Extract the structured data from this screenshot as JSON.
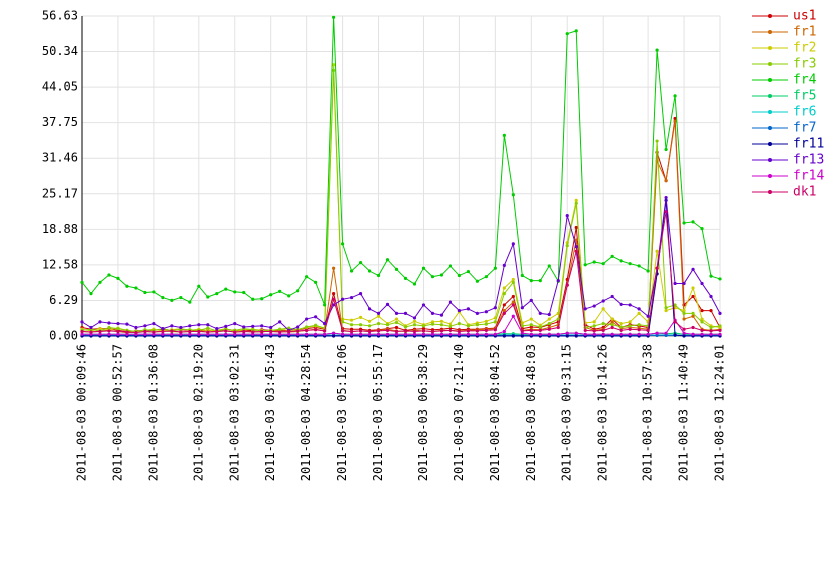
{
  "chart_data": {
    "type": "line",
    "categories": [
      "2011-08-03 00:09:46",
      null,
      null,
      null,
      "2011-08-03 00:52:57",
      null,
      null,
      null,
      "2011-08-03 01:36:08",
      null,
      null,
      null,
      null,
      "2011-08-03 02:19:20",
      null,
      null,
      null,
      "2011-08-03 03:02:31",
      null,
      null,
      null,
      "2011-08-03 03:45:43",
      null,
      null,
      null,
      "2011-08-03 04:28:54",
      null,
      null,
      null,
      "2011-08-03 05:12:06",
      null,
      null,
      null,
      "2011-08-03 05:55:17",
      null,
      null,
      null,
      null,
      "2011-08-03 06:38:29",
      null,
      null,
      null,
      "2011-08-03 07:21:40",
      null,
      null,
      null,
      "2011-08-03 08:04:52",
      null,
      null,
      null,
      "2011-08-03 08:48:03",
      null,
      null,
      null,
      "2011-08-03 09:31:15",
      null,
      null,
      null,
      "2011-08-03 10:14:26",
      null,
      null,
      null,
      null,
      "2011-08-03 10:57:38",
      null,
      null,
      null,
      "2011-08-03 11:40:49",
      null,
      null,
      null,
      "2011-08-03 12:24:01"
    ],
    "ylim": [
      0,
      56.63
    ],
    "yticks": [
      {
        "value": 0,
        "label": "0.00"
      },
      6.29,
      12.58,
      18.88,
      25.17,
      31.46,
      37.75,
      44.05,
      50.34,
      56.63
    ],
    "grid": true,
    "legend": "right",
    "series": [
      {
        "name": "us1",
        "color": "#cc0000",
        "values": [
          1.5,
          1.2,
          1.3,
          1.3,
          1,
          0.8,
          0.9,
          1,
          1,
          1.2,
          1,
          1.1,
          1,
          1,
          1,
          0.8,
          1.2,
          1,
          0.9,
          1,
          1.1,
          1,
          0.9,
          1,
          1.1,
          1.3,
          1.5,
          1.2,
          7.5,
          1.3,
          1.2,
          1.2,
          1,
          1.1,
          1.3,
          1.5,
          1,
          1.2,
          1.3,
          1.1,
          1.2,
          1.4,
          1.1,
          1.2,
          1.2,
          1.3,
          1.4,
          5.5,
          7,
          1.3,
          1.6,
          1.5,
          2,
          2.5,
          10,
          19.2,
          2,
          1.2,
          1.5,
          3,
          1.5,
          2,
          1.8,
          1.5,
          32.5,
          27.5,
          38.5,
          5.5,
          7,
          4.5,
          4.5,
          1.5
        ]
      },
      {
        "name": "fr1",
        "color": "#cc6600",
        "values": [
          0.8,
          0.7,
          0.9,
          1,
          0.8,
          0.6,
          0.7,
          0.8,
          0.7,
          0.9,
          0.8,
          0.7,
          0.8,
          0.9,
          0.7,
          0.8,
          0.9,
          0.7,
          0.8,
          0.8,
          0.7,
          0.9,
          0.8,
          0.7,
          0.8,
          1,
          1.2,
          0.9,
          12,
          1,
          0.8,
          0.9,
          0.8,
          1,
          1.2,
          0.9,
          0.8,
          1,
          0.9,
          0.8,
          1,
          1,
          0.9,
          1,
          1.1,
          1.2,
          1.3,
          4.5,
          6,
          1,
          1.2,
          1.1,
          1.5,
          2,
          9,
          17,
          1.5,
          1,
          1.2,
          2.5,
          1.3,
          1.5,
          1.4,
          1.2,
          31,
          27.5,
          38,
          3,
          3.5,
          1.2,
          1,
          1.2
        ]
      },
      {
        "name": "fr2",
        "color": "#cccc00",
        "values": [
          1.2,
          0.9,
          1.3,
          1.1,
          1.4,
          1,
          0.8,
          1,
          1.2,
          0.9,
          1.1,
          1.3,
          1,
          1.2,
          0.9,
          1,
          1.3,
          0.8,
          1.1,
          1.2,
          1,
          0.9,
          1.2,
          1,
          1.1,
          1.5,
          1.8,
          1.3,
          48,
          3,
          2.8,
          3.3,
          2.6,
          3.5,
          2.2,
          3,
          1.8,
          2.6,
          2,
          2.5,
          2.6,
          2.1,
          4.3,
          2,
          2.3,
          2.6,
          3.2,
          8.5,
          10,
          2.3,
          3,
          1.9,
          3,
          4,
          16.5,
          24,
          2.3,
          2.5,
          4.8,
          3,
          2.2,
          2.5,
          4,
          2.5,
          15,
          4.5,
          5,
          4.5,
          8.5,
          3,
          1.8,
          1.5
        ]
      },
      {
        "name": "fr3",
        "color": "#88cc00",
        "values": [
          1,
          1.2,
          0.9,
          1.5,
          1.3,
          1,
          0.8,
          1.1,
          1,
          1.3,
          0.9,
          1.2,
          1.1,
          1,
          1.4,
          0.9,
          1.2,
          1,
          1.3,
          1.1,
          0.9,
          1,
          1.2,
          1.4,
          1.1,
          1.6,
          1.9,
          1.4,
          47,
          2.5,
          2,
          2,
          1.8,
          2.2,
          2,
          2.4,
          1.6,
          2,
          1.8,
          2.1,
          2,
          1.7,
          2.2,
          1.8,
          2,
          2.1,
          2.5,
          7.5,
          9.5,
          1.8,
          2,
          1.6,
          2.2,
          3,
          16,
          23.5,
          1.5,
          1.8,
          2.2,
          2,
          1.6,
          1.8,
          2,
          1.8,
          34.5,
          5,
          5.5,
          4,
          4,
          2.5,
          1.5,
          1.8
        ]
      },
      {
        "name": "fr4",
        "color": "#00cc00",
        "values": [
          9.5,
          7.5,
          9.5,
          10.8,
          10.2,
          8.8,
          8.5,
          7.7,
          7.8,
          6.8,
          6.3,
          6.8,
          6,
          8.8,
          6.9,
          7.5,
          8.3,
          7.8,
          7.7,
          6.5,
          6.6,
          7.3,
          7.9,
          7.1,
          8,
          10.5,
          9.5,
          5.5,
          56.4,
          16.3,
          11.5,
          13,
          11.5,
          10.7,
          13.5,
          11.8,
          10.2,
          9.2,
          12,
          10.5,
          10.8,
          12.4,
          10.7,
          11.4,
          9.7,
          10.5,
          12,
          35.5,
          25,
          10.7,
          9.8,
          9.8,
          12.4,
          9.7,
          53.5,
          54,
          12.6,
          13.1,
          12.8,
          14.1,
          13.3,
          12.8,
          12.4,
          11.5,
          50.6,
          33,
          42.5,
          20,
          20.2,
          19,
          10.6,
          10.1
        ]
      },
      {
        "name": "fr5",
        "color": "#00cc66",
        "values": [
          0.3,
          0.3,
          0.3,
          0.3,
          0.3,
          0.3,
          0.3,
          0.3,
          0.3,
          0.3,
          0.3,
          0.3,
          0.3,
          0.3,
          0.3,
          0.3,
          0.3,
          0.3,
          0.3,
          0.3,
          0.3,
          0.3,
          0.3,
          0.3,
          0.3,
          0.3,
          0.3,
          0.3,
          0.5,
          0.3,
          0.3,
          0.3,
          0.3,
          0.3,
          0.3,
          0.3,
          0.3,
          0.3,
          0.3,
          0.3,
          0.3,
          0.3,
          0.3,
          0.3,
          0.3,
          0.3,
          0.3,
          0.4,
          0.4,
          0.3,
          0.3,
          0.3,
          0.3,
          0.3,
          0.5,
          0.5,
          0.3,
          0.3,
          0.3,
          0.3,
          0.3,
          0.3,
          0.3,
          0.3,
          0.5,
          0.4,
          0.5,
          0.3,
          0.3,
          0.3,
          0.3,
          0.3
        ]
      },
      {
        "name": "fr6",
        "color": "#00cccc",
        "values": [
          0.1,
          0.1,
          0.1,
          0.1,
          0.1,
          0.1,
          0.1,
          0.1,
          0.1,
          0.1,
          0.1,
          0.1,
          0.1,
          0.1,
          0.1,
          0.1,
          0.1,
          0.1,
          0.1,
          0.1,
          0.1,
          0.1,
          0.1,
          0.1,
          0.1,
          0.1,
          0.1,
          0.1,
          0.2,
          0.1,
          0.1,
          0.1,
          0.1,
          0.1,
          0.1,
          0.1,
          0.1,
          0.1,
          0.1,
          0.1,
          0.1,
          0.1,
          0.1,
          0.1,
          0.1,
          0.1,
          0.1,
          0.2,
          0.2,
          0.1,
          0.1,
          0.1,
          0.1,
          0.1,
          0.2,
          0.2,
          0.1,
          0.1,
          0.1,
          0.1,
          0.1,
          0.1,
          0.1,
          0.1,
          0.2,
          0.2,
          0.2,
          0.1,
          0.1,
          0.1,
          0.1,
          0.1
        ]
      },
      {
        "name": "fr7",
        "color": "#0066cc",
        "values": [
          0.1,
          0.1,
          0.1,
          0.1,
          0.1,
          0.1,
          0.1,
          0.1,
          0.1,
          0.1,
          0.1,
          0.1,
          0.1,
          0.1,
          0.1,
          0.1,
          0.1,
          0.1,
          0.1,
          0.1,
          0.1,
          0.1,
          0.1,
          0.1,
          0.1,
          0.1,
          0.1,
          0.1,
          0.1,
          0.1,
          0.1,
          0.1,
          0.1,
          0.1,
          0.1,
          0.1,
          0.1,
          0.1,
          0.1,
          0.1,
          0.1,
          0.1,
          0.1,
          0.1,
          0.1,
          0.1,
          0.1,
          0.1,
          0.1,
          0.1,
          0.1,
          0.1,
          0.1,
          0.1,
          0.1,
          0.1,
          0.1,
          0.1,
          0.1,
          0.1,
          0.1,
          0.1,
          0.1,
          0.1,
          0.1,
          0.1,
          0.1,
          0.1,
          0.1,
          0.1,
          0.1,
          0.1
        ]
      },
      {
        "name": "fr11",
        "color": "#000099",
        "values": [
          0,
          0,
          0,
          0,
          0,
          0,
          0,
          0,
          0,
          0,
          0,
          0,
          0,
          0,
          0,
          0,
          0,
          0,
          0,
          0,
          0,
          0,
          0,
          0,
          0,
          0,
          0,
          0,
          0,
          0,
          0,
          0,
          0,
          0,
          0,
          0,
          0,
          0,
          0,
          0,
          0,
          0,
          0,
          0,
          0,
          0,
          0,
          0,
          0,
          0,
          0,
          0,
          0,
          0,
          0,
          0,
          0,
          0,
          0,
          0,
          0,
          0,
          0,
          0,
          11,
          24,
          0.2,
          0,
          0,
          0,
          0,
          0
        ]
      },
      {
        "name": "fr13",
        "color": "#6600cc",
        "values": [
          2.5,
          1.5,
          2.5,
          2.3,
          2.2,
          2.1,
          1.5,
          1.8,
          2.2,
          1.3,
          1.8,
          1.5,
          1.8,
          2,
          2,
          1.3,
          1.7,
          2.2,
          1.6,
          1.7,
          1.8,
          1.5,
          2.5,
          1,
          1.6,
          3,
          3.4,
          2.2,
          5.5,
          6.5,
          6.8,
          7.5,
          4.8,
          4,
          5.6,
          4,
          4,
          3.2,
          5.5,
          4,
          3.7,
          6,
          4.5,
          4.8,
          4,
          4.3,
          5,
          12.5,
          16.3,
          5,
          6.3,
          4,
          3.8,
          9.8,
          21.3,
          15.8,
          4.8,
          5.3,
          6.2,
          7,
          5.6,
          5.5,
          4.8,
          3.5,
          12,
          24.5,
          9.3,
          9.3,
          11.8,
          9.3,
          7,
          4
        ]
      },
      {
        "name": "fr14",
        "color": "#cc00cc",
        "values": [
          0.3,
          0.3,
          0.3,
          0.3,
          0.3,
          0.3,
          0.3,
          0.3,
          0.3,
          0.3,
          0.3,
          0.3,
          0.3,
          0.3,
          0.3,
          0.3,
          0.3,
          0.3,
          0.3,
          0.3,
          0.3,
          0.3,
          0.3,
          0.3,
          0.3,
          0.3,
          0.3,
          0.3,
          0.5,
          0.3,
          0.3,
          0.3,
          0.3,
          0.3,
          0.3,
          0.3,
          0.3,
          0.3,
          0.3,
          0.3,
          0.3,
          0.3,
          0.3,
          0.3,
          0.3,
          0.3,
          0.3,
          0.8,
          3.5,
          0.5,
          0.3,
          0.3,
          0.3,
          0.3,
          0.5,
          0.5,
          0.3,
          0.3,
          0.3,
          0.3,
          0.3,
          0.3,
          0.3,
          0.3,
          0.5,
          0.5,
          2.8,
          0.5,
          0.3,
          0.3,
          0.3,
          0.3
        ]
      },
      {
        "name": "dk1",
        "color": "#cc0066",
        "values": [
          0.8,
          0.7,
          0.8,
          0.9,
          0.8,
          0.7,
          0.6,
          0.8,
          0.7,
          0.8,
          0.9,
          0.7,
          0.8,
          0.8,
          0.7,
          0.8,
          0.9,
          0.7,
          0.8,
          0.7,
          0.8,
          0.8,
          0.7,
          0.8,
          0.9,
          1,
          1.1,
          0.9,
          6.5,
          0.9,
          0.8,
          0.9,
          0.8,
          0.9,
          1,
          0.8,
          0.9,
          0.8,
          0.9,
          0.8,
          0.9,
          1,
          0.8,
          0.9,
          0.9,
          1,
          1.1,
          4,
          5.5,
          0.9,
          1,
          1,
          1.2,
          1.5,
          9,
          15,
          1,
          0.9,
          1,
          1.5,
          1,
          1.2,
          1.1,
          1,
          12,
          22,
          2.5,
          1.2,
          1.5,
          1,
          0.9,
          1
        ]
      }
    ]
  }
}
